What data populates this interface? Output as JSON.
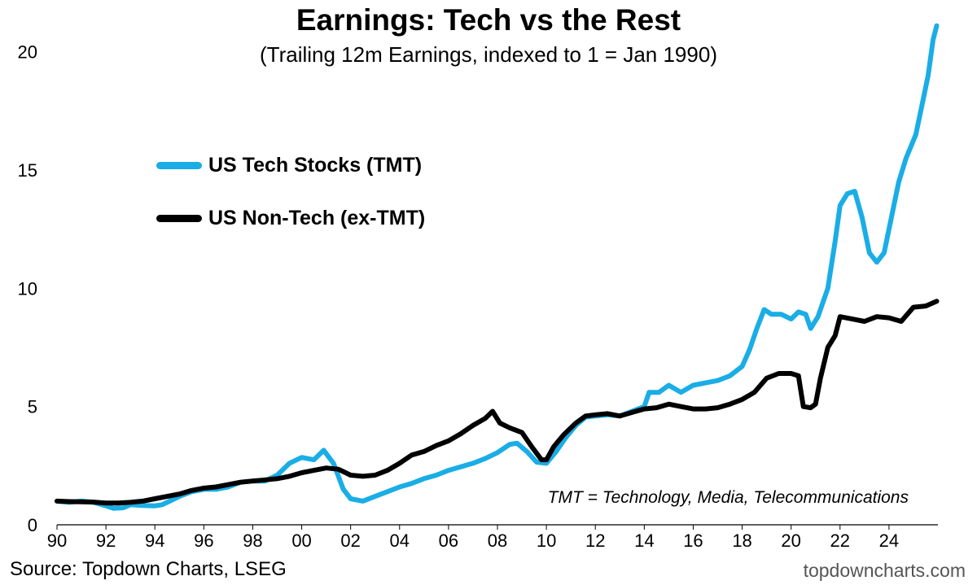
{
  "chart_data": {
    "type": "line",
    "title": "Earnings: Tech vs the Rest",
    "subtitle": "(Trailing 12m Earnings, indexed to 1 = Jan 1990)",
    "xlabel": "",
    "ylabel": "",
    "xlim": [
      1990,
      2026
    ],
    "ylim": [
      0,
      21.5
    ],
    "x_ticks": [
      1990,
      1992,
      1994,
      1996,
      1998,
      2000,
      2002,
      2004,
      2006,
      2008,
      2010,
      2012,
      2014,
      2016,
      2018,
      2020,
      2022,
      2024
    ],
    "x_tick_labels": [
      "90",
      "92",
      "94",
      "96",
      "98",
      "00",
      "02",
      "04",
      "06",
      "08",
      "10",
      "12",
      "14",
      "16",
      "18",
      "20",
      "22",
      "24"
    ],
    "y_ticks": [
      0,
      5,
      10,
      15,
      20
    ],
    "y_tick_labels": [
      "0",
      "5",
      "10",
      "15",
      "20"
    ],
    "grid": false,
    "legend_position": "upper-left",
    "annotation": "TMT = Technology, Media, Telecommunications",
    "series": [
      {
        "name": "US Tech Stocks (TMT)",
        "color": "#1AADE6",
        "points": [
          [
            1990.0,
            1.0
          ],
          [
            1990.5,
            0.95
          ],
          [
            1991.0,
            1.0
          ],
          [
            1991.5,
            0.95
          ],
          [
            1992.0,
            0.8
          ],
          [
            1992.3,
            0.7
          ],
          [
            1992.7,
            0.72
          ],
          [
            1993.0,
            0.85
          ],
          [
            1993.5,
            0.82
          ],
          [
            1994.0,
            0.8
          ],
          [
            1994.3,
            0.85
          ],
          [
            1994.7,
            1.05
          ],
          [
            1995.0,
            1.2
          ],
          [
            1995.5,
            1.4
          ],
          [
            1996.0,
            1.5
          ],
          [
            1996.5,
            1.5
          ],
          [
            1997.0,
            1.6
          ],
          [
            1997.5,
            1.8
          ],
          [
            1998.0,
            1.85
          ],
          [
            1998.5,
            1.85
          ],
          [
            1999.0,
            2.1
          ],
          [
            1999.5,
            2.6
          ],
          [
            2000.0,
            2.85
          ],
          [
            2000.5,
            2.75
          ],
          [
            2000.9,
            3.15
          ],
          [
            2001.3,
            2.6
          ],
          [
            2001.7,
            1.5
          ],
          [
            2002.0,
            1.1
          ],
          [
            2002.5,
            1.0
          ],
          [
            2003.0,
            1.2
          ],
          [
            2003.5,
            1.4
          ],
          [
            2004.0,
            1.6
          ],
          [
            2004.5,
            1.75
          ],
          [
            2005.0,
            1.95
          ],
          [
            2005.5,
            2.1
          ],
          [
            2006.0,
            2.3
          ],
          [
            2006.5,
            2.45
          ],
          [
            2007.0,
            2.6
          ],
          [
            2007.5,
            2.8
          ],
          [
            2008.0,
            3.05
          ],
          [
            2008.5,
            3.4
          ],
          [
            2008.8,
            3.45
          ],
          [
            2009.2,
            3.1
          ],
          [
            2009.6,
            2.65
          ],
          [
            2010.0,
            2.6
          ],
          [
            2010.4,
            3.1
          ],
          [
            2010.8,
            3.7
          ],
          [
            2011.2,
            4.2
          ],
          [
            2011.6,
            4.55
          ],
          [
            2012.0,
            4.6
          ],
          [
            2012.5,
            4.65
          ],
          [
            2013.0,
            4.6
          ],
          [
            2013.5,
            4.8
          ],
          [
            2014.0,
            5.0
          ],
          [
            2014.2,
            5.6
          ],
          [
            2014.6,
            5.6
          ],
          [
            2015.0,
            5.9
          ],
          [
            2015.5,
            5.6
          ],
          [
            2016.0,
            5.9
          ],
          [
            2016.5,
            6.0
          ],
          [
            2017.0,
            6.1
          ],
          [
            2017.5,
            6.3
          ],
          [
            2018.0,
            6.7
          ],
          [
            2018.3,
            7.4
          ],
          [
            2018.6,
            8.3
          ],
          [
            2018.9,
            9.1
          ],
          [
            2019.2,
            8.9
          ],
          [
            2019.6,
            8.9
          ],
          [
            2020.0,
            8.7
          ],
          [
            2020.3,
            9.0
          ],
          [
            2020.6,
            8.9
          ],
          [
            2020.8,
            8.3
          ],
          [
            2021.1,
            8.8
          ],
          [
            2021.5,
            10.0
          ],
          [
            2021.8,
            12.0
          ],
          [
            2022.0,
            13.5
          ],
          [
            2022.3,
            14.0
          ],
          [
            2022.6,
            14.1
          ],
          [
            2022.9,
            13.0
          ],
          [
            2023.2,
            11.5
          ],
          [
            2023.5,
            11.1
          ],
          [
            2023.8,
            11.5
          ],
          [
            2024.1,
            13.0
          ],
          [
            2024.4,
            14.5
          ],
          [
            2024.7,
            15.5
          ],
          [
            2024.9,
            16.0
          ],
          [
            2025.1,
            16.5
          ],
          [
            2025.4,
            18.0
          ],
          [
            2025.6,
            19.0
          ],
          [
            2025.8,
            20.5
          ],
          [
            2025.95,
            21.1
          ]
        ]
      },
      {
        "name": "US Non-Tech (ex-TMT)",
        "color": "#000000",
        "points": [
          [
            1990.0,
            1.0
          ],
          [
            1990.5,
            0.98
          ],
          [
            1991.0,
            0.97
          ],
          [
            1991.5,
            0.96
          ],
          [
            1992.0,
            0.92
          ],
          [
            1992.5,
            0.92
          ],
          [
            1993.0,
            0.95
          ],
          [
            1993.5,
            1.0
          ],
          [
            1994.0,
            1.1
          ],
          [
            1994.5,
            1.2
          ],
          [
            1995.0,
            1.3
          ],
          [
            1995.5,
            1.45
          ],
          [
            1996.0,
            1.55
          ],
          [
            1996.5,
            1.6
          ],
          [
            1997.0,
            1.7
          ],
          [
            1997.5,
            1.8
          ],
          [
            1998.0,
            1.85
          ],
          [
            1998.5,
            1.9
          ],
          [
            1999.0,
            1.95
          ],
          [
            1999.5,
            2.05
          ],
          [
            2000.0,
            2.2
          ],
          [
            2000.5,
            2.3
          ],
          [
            2001.0,
            2.4
          ],
          [
            2001.5,
            2.35
          ],
          [
            2002.0,
            2.1
          ],
          [
            2002.5,
            2.05
          ],
          [
            2003.0,
            2.1
          ],
          [
            2003.5,
            2.3
          ],
          [
            2004.0,
            2.6
          ],
          [
            2004.5,
            2.95
          ],
          [
            2005.0,
            3.1
          ],
          [
            2005.5,
            3.35
          ],
          [
            2006.0,
            3.55
          ],
          [
            2006.5,
            3.85
          ],
          [
            2007.0,
            4.2
          ],
          [
            2007.5,
            4.5
          ],
          [
            2007.8,
            4.8
          ],
          [
            2008.1,
            4.3
          ],
          [
            2008.5,
            4.1
          ],
          [
            2009.0,
            3.9
          ],
          [
            2009.4,
            3.3
          ],
          [
            2009.8,
            2.75
          ],
          [
            2010.0,
            2.75
          ],
          [
            2010.3,
            3.3
          ],
          [
            2010.7,
            3.8
          ],
          [
            2011.2,
            4.3
          ],
          [
            2011.6,
            4.6
          ],
          [
            2012.0,
            4.65
          ],
          [
            2012.5,
            4.7
          ],
          [
            2013.0,
            4.6
          ],
          [
            2013.5,
            4.75
          ],
          [
            2014.0,
            4.9
          ],
          [
            2014.5,
            4.95
          ],
          [
            2015.0,
            5.1
          ],
          [
            2015.5,
            5.0
          ],
          [
            2016.0,
            4.9
          ],
          [
            2016.5,
            4.9
          ],
          [
            2017.0,
            4.95
          ],
          [
            2017.5,
            5.1
          ],
          [
            2018.0,
            5.3
          ],
          [
            2018.5,
            5.6
          ],
          [
            2019.0,
            6.2
          ],
          [
            2019.5,
            6.4
          ],
          [
            2020.0,
            6.4
          ],
          [
            2020.3,
            6.3
          ],
          [
            2020.5,
            5.0
          ],
          [
            2020.8,
            4.95
          ],
          [
            2021.0,
            5.1
          ],
          [
            2021.2,
            6.2
          ],
          [
            2021.5,
            7.5
          ],
          [
            2021.8,
            8.0
          ],
          [
            2022.0,
            8.8
          ],
          [
            2022.5,
            8.7
          ],
          [
            2023.0,
            8.6
          ],
          [
            2023.5,
            8.8
          ],
          [
            2024.0,
            8.75
          ],
          [
            2024.5,
            8.6
          ],
          [
            2025.0,
            9.2
          ],
          [
            2025.5,
            9.25
          ],
          [
            2025.95,
            9.45
          ]
        ]
      }
    ]
  },
  "source": "Source: Topdown Charts, LSEG",
  "brand": "topdowncharts.com"
}
